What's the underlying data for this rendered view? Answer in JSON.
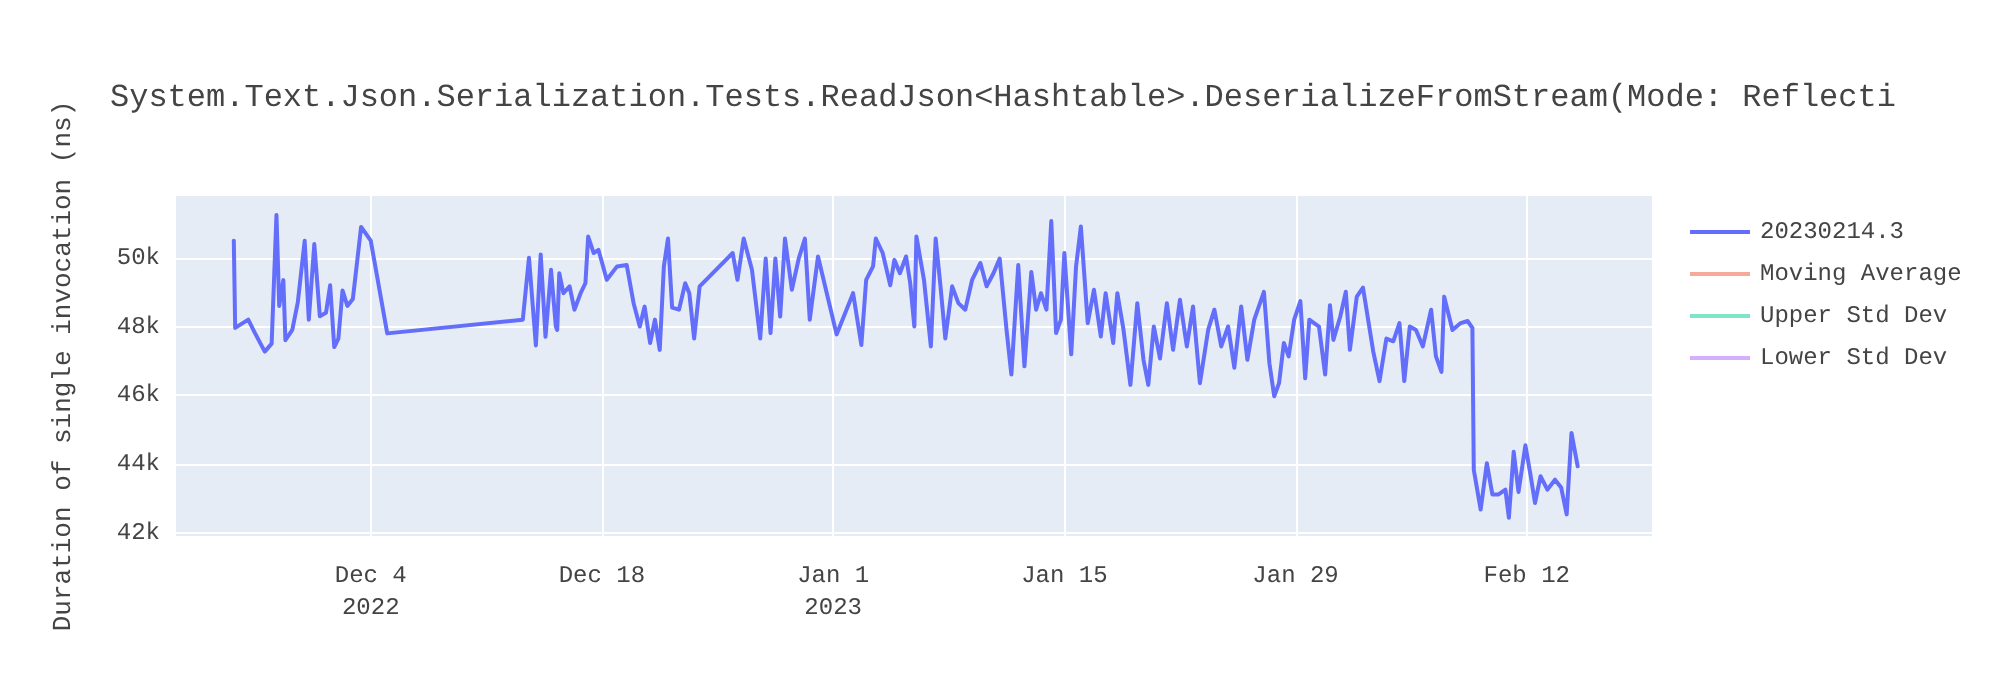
{
  "chart_data": {
    "type": "line",
    "title": "System.Text.Json.Serialization.Tests.ReadJson<Hashtable>.DeserializeFromStream(Mode: Reflecti",
    "ylabel": "Duration of single invocation (ns)",
    "xlim": [
      "2022-11-22T05:00",
      "2023-02-19T14:00"
    ],
    "xticks": [
      {
        "value": "2022-12-04",
        "label": "Dec 4\n2022"
      },
      {
        "value": "2022-12-18",
        "label": "Dec 18"
      },
      {
        "value": "2023-01-01",
        "label": "Jan 1\n2023"
      },
      {
        "value": "2023-01-15",
        "label": "Jan 15"
      },
      {
        "value": "2023-01-29",
        "label": "Jan 29"
      },
      {
        "value": "2023-02-12",
        "label": "Feb 12"
      }
    ],
    "ylim": [
      41900,
      51800
    ],
    "yticks": [
      {
        "value": 42000,
        "label": "42k"
      },
      {
        "value": 44000,
        "label": "44k"
      },
      {
        "value": 46000,
        "label": "46k"
      },
      {
        "value": 48000,
        "label": "48k"
      },
      {
        "value": 50000,
        "label": "50k"
      }
    ],
    "grid": true,
    "legend": "top right",
    "marker": "none",
    "line_style": "solid",
    "series": [
      {
        "name": "20230214.3",
        "color": "#636efa",
        "x": [
          "2022-11-25T17:00",
          "2022-11-25T19:00",
          "2022-11-26T14:00",
          "2022-11-27T00:00",
          "2022-11-27T14:00",
          "2022-11-28T00:00",
          "2022-11-28T07:00",
          "2022-11-28T11:00",
          "2022-11-28T17:00",
          "2022-11-28T20:00",
          "2022-11-29T06:00",
          "2022-11-29T14:00",
          "2022-11-30T00:00",
          "2022-11-30T06:00",
          "2022-11-30T14:00",
          "2022-11-30T22:00",
          "2022-12-01T07:00",
          "2022-12-01T13:00",
          "2022-12-01T19:00",
          "2022-12-02T01:00",
          "2022-12-02T07:00",
          "2022-12-02T14:00",
          "2022-12-02T22:00",
          "2022-12-03T10:00",
          "2022-12-04T00:00",
          "2022-12-05T00:00",
          "2022-12-13T05:00",
          "2022-12-13T14:00",
          "2022-12-14T00:00",
          "2022-12-14T07:00",
          "2022-12-14T14:00",
          "2022-12-14T22:00",
          "2022-12-15T05:00",
          "2022-12-15T07:00",
          "2022-12-15T10:00",
          "2022-12-15T16:00",
          "2022-12-16T01:00",
          "2022-12-16T08:00",
          "2022-12-16T17:00",
          "2022-12-17T00:00",
          "2022-12-17T04:00",
          "2022-12-17T12:00",
          "2022-12-17T19:00",
          "2022-12-18T07:00",
          "2022-12-18T22:00",
          "2022-12-19T12:00",
          "2022-12-19T22:00",
          "2022-12-20T07:00",
          "2022-12-20T14:00",
          "2022-12-20T22:00",
          "2022-12-21T05:00",
          "2022-12-21T12:00",
          "2022-12-21T18:00",
          "2022-12-22T00:00",
          "2022-12-22T06:00",
          "2022-12-22T16:00",
          "2022-12-23T01:00",
          "2022-12-23T07:00",
          "2022-12-23T14:00",
          "2022-12-23T22:00",
          "2022-12-25T22:00",
          "2022-12-26T05:00",
          "2022-12-26T14:00",
          "2022-12-27T02:00",
          "2022-12-27T14:00",
          "2022-12-27T22:00",
          "2022-12-28T05:00",
          "2022-12-28T12:00",
          "2022-12-28T19:00",
          "2022-12-29T02:00",
          "2022-12-29T12:00",
          "2022-12-29T22:00",
          "2022-12-30T07:00",
          "2022-12-30T14:00",
          "2022-12-31T02:00",
          "2023-01-01T05:00",
          "2023-01-02T05:00",
          "2023-01-02T17:00",
          "2023-01-03T00:00",
          "2023-01-03T10:00",
          "2023-01-03T14:00",
          "2023-01-04T00:00",
          "2023-01-04T11:00",
          "2023-01-04T17:00",
          "2023-01-05T01:00",
          "2023-01-05T10:00",
          "2023-01-05T16:00",
          "2023-01-05T22:00",
          "2023-01-06T01:00",
          "2023-01-06T12:00",
          "2023-01-06T22:00",
          "2023-01-07T05:00",
          "2023-01-07T12:00",
          "2023-01-07T19:00",
          "2023-01-08T05:00",
          "2023-01-08T14:00",
          "2023-01-09T00:00",
          "2023-01-09T10:00",
          "2023-01-09T22:00",
          "2023-01-10T07:00",
          "2023-01-10T17:00",
          "2023-01-11T02:00",
          "2023-01-11T12:00",
          "2023-01-11T19:00",
          "2023-01-12T05:00",
          "2023-01-12T14:00",
          "2023-01-13T00:00",
          "2023-01-13T07:00",
          "2023-01-13T14:00",
          "2023-01-13T22:00",
          "2023-01-14T05:00",
          "2023-01-14T12:00",
          "2023-01-14T19:00",
          "2023-01-15T00:00",
          "2023-01-15T10:00",
          "2023-01-15T17:00",
          "2023-01-16T00:00",
          "2023-01-16T10:00",
          "2023-01-16T19:00",
          "2023-01-17T05:00",
          "2023-01-17T12:00",
          "2023-01-17T23:00",
          "2023-01-18T05:00",
          "2023-01-18T14:00",
          "2023-01-19T00:00",
          "2023-01-19T10:00",
          "2023-01-19T19:00",
          "2023-01-20T02:00",
          "2023-01-20T10:00",
          "2023-01-20T19:00",
          "2023-01-21T05:00",
          "2023-01-21T14:00",
          "2023-01-22T00:00",
          "2023-01-22T10:00",
          "2023-01-22T19:00",
          "2023-01-23T05:00",
          "2023-01-23T17:00",
          "2023-01-24T02:00",
          "2023-01-24T12:00",
          "2023-01-24T22:00",
          "2023-01-25T07:00",
          "2023-01-25T17:00",
          "2023-01-26T02:00",
          "2023-01-26T12:00",
          "2023-01-27T02:00",
          "2023-01-27T10:00",
          "2023-01-27T17:00",
          "2023-01-28T00:00",
          "2023-01-28T07:00",
          "2023-01-28T14:00",
          "2023-01-28T22:00",
          "2023-01-29T07:00",
          "2023-01-29T14:00",
          "2023-01-29T20:00",
          "2023-01-30T10:00",
          "2023-01-30T19:00",
          "2023-01-31T02:00",
          "2023-01-31T07:00",
          "2023-01-31T17:00",
          "2023-02-01T01:00",
          "2023-02-01T07:00",
          "2023-02-01T17:00",
          "2023-02-02T02:00",
          "2023-02-02T17:00",
          "2023-02-03T02:00",
          "2023-02-03T12:00",
          "2023-02-03T22:00",
          "2023-02-04T07:00",
          "2023-02-04T14:00",
          "2023-02-04T22:00",
          "2023-02-05T07:00",
          "2023-02-05T17:00",
          "2023-02-06T05:00",
          "2023-02-06T12:00",
          "2023-02-06T20:00",
          "2023-02-07T00:00",
          "2023-02-07T12:00",
          "2023-02-08T00:00",
          "2023-02-08T10:00",
          "2023-02-08T17:00",
          "2023-02-08T19:00",
          "2023-02-09T05:00",
          "2023-02-09T14:00",
          "2023-02-09T22:00",
          "2023-02-10T07:00",
          "2023-02-10T17:00",
          "2023-02-10T22:00",
          "2023-02-11T05:00",
          "2023-02-11T12:00",
          "2023-02-11T22:00",
          "2023-02-12T05:00",
          "2023-02-12T12:00",
          "2023-02-12T20:00",
          "2023-02-13T06:00",
          "2023-02-13T17:00",
          "2023-02-14T02:00",
          "2023-02-14T10:00",
          "2023-02-14T17:00",
          "2023-02-15T02:00"
        ],
        "values": [
          50500,
          47960,
          48200,
          47800,
          47270,
          47500,
          51250,
          48600,
          49350,
          47600,
          47900,
          48700,
          50500,
          48200,
          50400,
          48300,
          48400,
          49200,
          47400,
          47650,
          49050,
          48600,
          48800,
          50900,
          50500,
          47800,
          48200,
          50000,
          47450,
          50100,
          47700,
          49650,
          48000,
          47900,
          49550,
          48970,
          49170,
          48490,
          48970,
          49260,
          50620,
          50140,
          50230,
          49360,
          49750,
          49790,
          48680,
          48000,
          48580,
          47520,
          48200,
          47320,
          49750,
          50560,
          48550,
          48490,
          49260,
          48970,
          47650,
          49170,
          50140,
          49360,
          50560,
          49650,
          47650,
          49980,
          47810,
          49980,
          48290,
          50560,
          49070,
          49980,
          50560,
          48200,
          50040,
          47770,
          48970,
          47460,
          49360,
          49750,
          50560,
          50140,
          49200,
          49940,
          49550,
          50040,
          49260,
          48000,
          50620,
          49360,
          47420,
          50560,
          49170,
          47650,
          49170,
          48680,
          48490,
          49360,
          49850,
          49170,
          49550,
          49980,
          47900,
          46600,
          49790,
          46840,
          49590,
          48490,
          48970,
          48490,
          51070,
          47810,
          48200,
          50140,
          47190,
          49750,
          50910,
          48100,
          49070,
          47710,
          48970,
          47520,
          48970,
          47900,
          46300,
          48680,
          47030,
          46300,
          48000,
          47070,
          48680,
          47320,
          48780,
          47420,
          48580,
          46350,
          47900,
          48490,
          47420,
          48000,
          46800,
          48580,
          47030,
          48200,
          49010,
          46930,
          45970,
          46350,
          47520,
          47130,
          48200,
          48740,
          46490,
          48200,
          48000,
          46600,
          48620,
          47610,
          48290,
          49010,
          47320,
          48870,
          49130,
          47260,
          46410,
          47650,
          47570,
          48100,
          46410,
          48000,
          47900,
          47420,
          48490,
          47130,
          46680,
          48870,
          47900,
          48100,
          48160,
          47960,
          43830,
          42670,
          44020,
          43110,
          43110,
          43250,
          42430,
          44350,
          43180,
          44540,
          43730,
          42860,
          43640,
          43250,
          43540,
          43310,
          42530,
          44900,
          43930
        ]
      },
      {
        "name": "Moving Average",
        "color": "#f7a99c"
      },
      {
        "name": "Upper Std Dev",
        "color": "#7fe5ca"
      },
      {
        "name": "Lower Std Dev",
        "color": "#d4b0fc"
      }
    ]
  }
}
